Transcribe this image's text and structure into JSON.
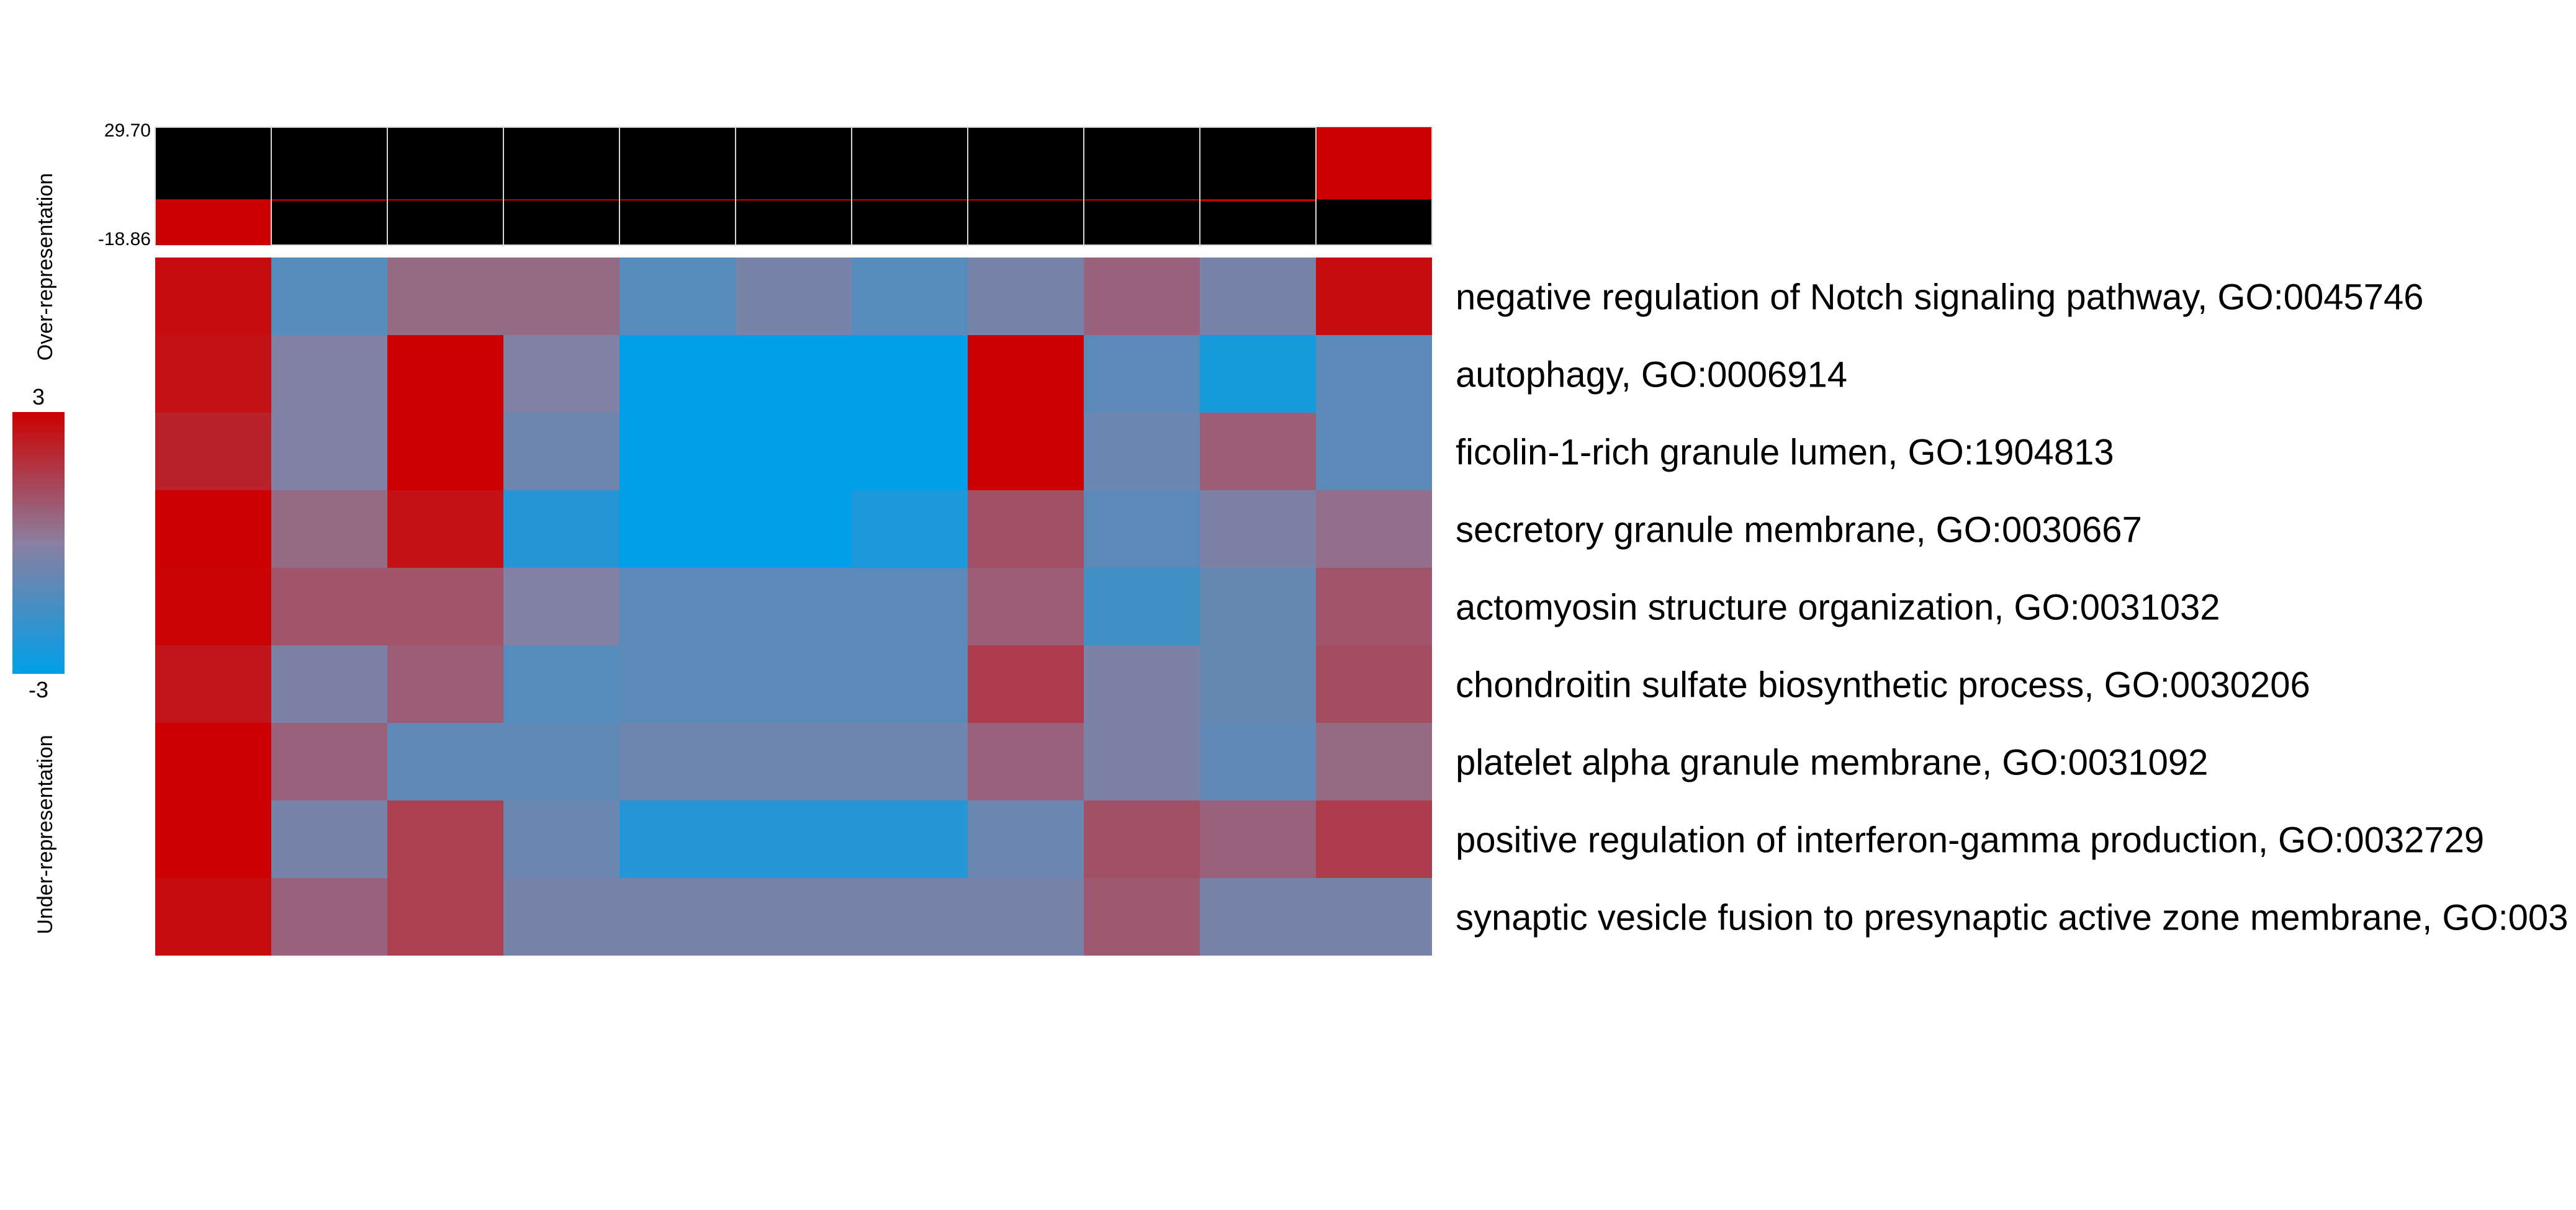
{
  "chart_data": {
    "type": "heatmap",
    "title": "",
    "color_scale": {
      "min": -3,
      "max": 3,
      "min_label": "-3",
      "max_label": "3",
      "low_color": "#009FE8",
      "mid_color": "#8A7FA0",
      "high_color": "#CC0000",
      "over_label": "Over-representation",
      "under_label": "Under-representation"
    },
    "top_bar": {
      "max_label": "29.70",
      "min_label": "-18.86",
      "range": [
        -18.86,
        29.7
      ],
      "values": [
        -18.86,
        -0.6,
        -0.4,
        -0.2,
        -0.15,
        -0.1,
        -0.05,
        -0.3,
        -0.2,
        -0.8,
        29.7
      ],
      "positive_color": "#CC0000",
      "background_color": "#000000"
    },
    "rows": [
      "negative regulation of Notch signaling pathway, GO:0045746",
      "autophagy, GO:0006914",
      "ficolin-1-rich granule lumen, GO:1904813",
      "secretory granule membrane, GO:0030667",
      "actomyosin structure organization, GO:0031032",
      "chondroitin sulfate biosynthetic process, GO:0030206",
      "platelet alpha granule membrane, GO:0031092",
      "positive regulation of interferon-gamma production, GO:0032729",
      "synaptic vesicle fusion to presynaptic active zone membrane, GO:003"
    ],
    "values": [
      [
        2.7,
        -1.2,
        0.5,
        0.5,
        -1.2,
        -0.4,
        -1.2,
        -0.4,
        0.7,
        -0.4,
        2.7
      ],
      [
        2.6,
        -0.2,
        3.0,
        -0.2,
        -3.0,
        -3.0,
        -3.0,
        3.0,
        -1.0,
        -2.5,
        -1.0
      ],
      [
        2.2,
        -0.2,
        3.0,
        -0.6,
        -3.0,
        -3.0,
        -3.0,
        3.0,
        -0.7,
        0.8,
        -1.0
      ],
      [
        3.0,
        0.5,
        2.6,
        -2.2,
        -3.0,
        -3.0,
        -2.4,
        1.1,
        -1.0,
        -0.3,
        0.4
      ],
      [
        2.9,
        1.0,
        1.0,
        -0.2,
        -1.0,
        -1.0,
        -1.0,
        0.8,
        -1.6,
        -0.8,
        1.0
      ],
      [
        2.5,
        -0.3,
        0.8,
        -1.2,
        -1.0,
        -1.0,
        -1.0,
        1.6,
        -0.3,
        -0.8,
        1.2
      ],
      [
        3.0,
        0.7,
        -0.9,
        -0.9,
        -0.6,
        -0.6,
        -0.6,
        0.7,
        -0.3,
        -0.9,
        0.5
      ],
      [
        3.0,
        -0.4,
        1.5,
        -0.7,
        -2.2,
        -2.2,
        -2.2,
        -0.7,
        1.1,
        0.7,
        1.6
      ],
      [
        2.7,
        0.7,
        1.5,
        -0.4,
        -0.4,
        -0.4,
        -0.4,
        -0.4,
        0.9,
        -0.4,
        -0.4
      ]
    ]
  }
}
